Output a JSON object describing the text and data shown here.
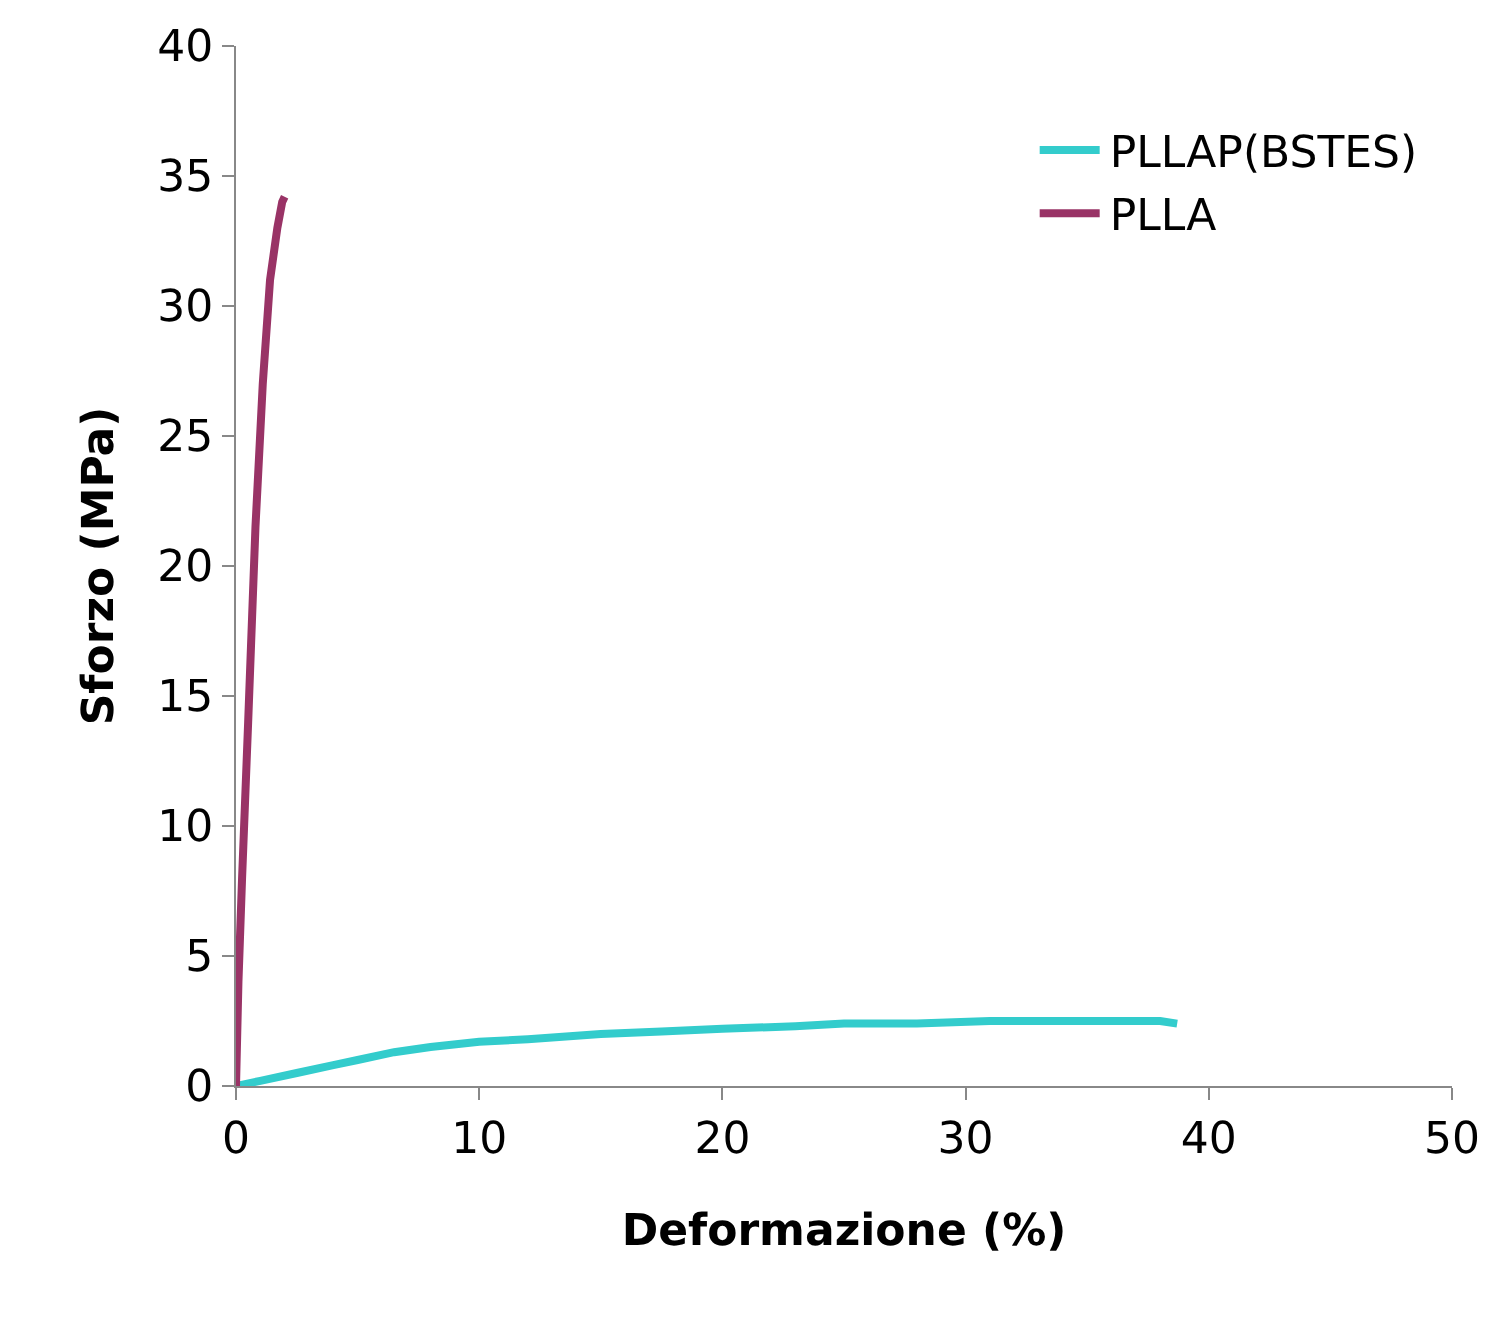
{
  "chart_data": {
    "type": "line",
    "xlabel": "Deformazione (%)",
    "ylabel": "Sforzo (MPa)",
    "xlim": [
      0,
      50
    ],
    "xticks": [
      0,
      10,
      20,
      30,
      40,
      50
    ],
    "ylim": [
      0,
      40
    ],
    "yticks": [
      0,
      5,
      10,
      15,
      20,
      25,
      30,
      35,
      40
    ],
    "legend": "top right",
    "marker": "none",
    "line_style": "solid",
    "series": [
      {
        "name": "PLLAP(BSTES)",
        "color": "#33cccc",
        "x": [
          0,
          1,
          2.5,
          4,
          5,
          6.5,
          8,
          10,
          12,
          15,
          17.5,
          20,
          23,
          25,
          28,
          31,
          35,
          38,
          38.7
        ],
        "values": [
          0,
          0.2,
          0.5,
          0.8,
          1.0,
          1.3,
          1.5,
          1.7,
          1.8,
          2.0,
          2.1,
          2.2,
          2.3,
          2.4,
          2.4,
          2.5,
          2.5,
          2.5,
          2.4
        ]
      },
      {
        "name": "PLLA",
        "color": "#993366",
        "x": [
          0,
          0.1,
          0.25,
          0.5,
          0.8,
          1.1,
          1.4,
          1.7,
          1.9,
          2.0
        ],
        "values": [
          0,
          4,
          8,
          14,
          21.5,
          27,
          31,
          33,
          34,
          34.2
        ]
      }
    ]
  }
}
